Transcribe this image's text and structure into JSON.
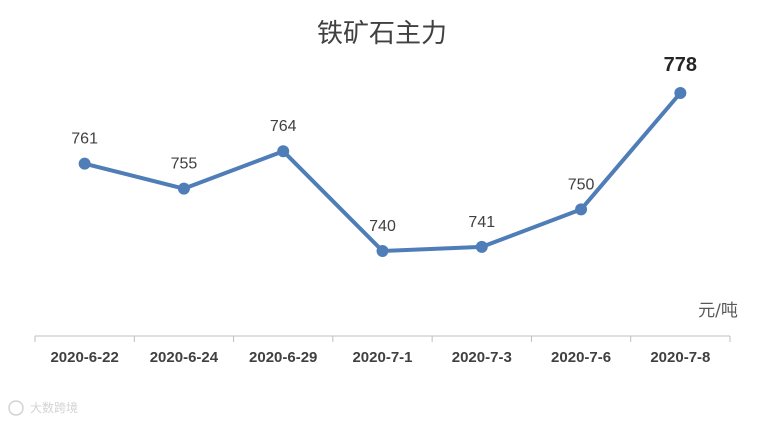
{
  "chart_data": {
    "type": "line",
    "title": "铁矿石主力",
    "unit_label": "元/吨",
    "categories": [
      "2020-6-22",
      "2020-6-24",
      "2020-6-29",
      "2020-7-1",
      "2020-7-3",
      "2020-7-6",
      "2020-7-8"
    ],
    "series": [
      {
        "values": [
          761,
          755,
          764,
          740,
          741,
          750,
          778
        ],
        "color": "#4F7DB8"
      }
    ],
    "data_labels": [
      "761",
      "755",
      "764",
      "740",
      "741",
      "750",
      "778"
    ],
    "highlight_last_label": true,
    "grid": false,
    "legend": "none"
  },
  "watermark": "大数跨境"
}
